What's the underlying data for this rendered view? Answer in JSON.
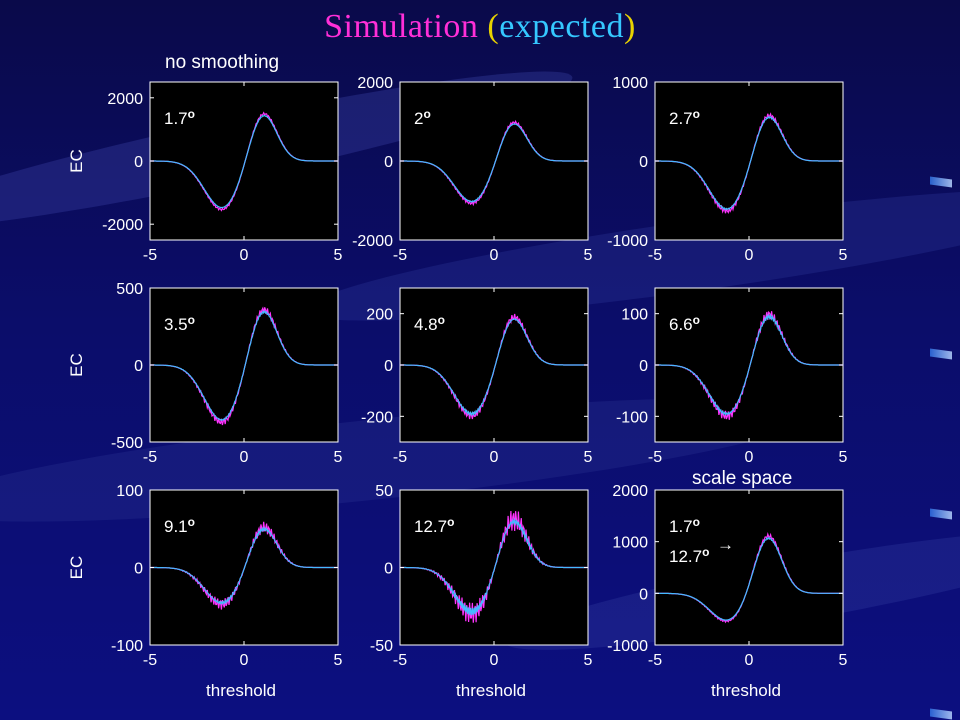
{
  "slide": {
    "title_part1": "Simulation",
    "title_open": "(",
    "title_part2": "expected",
    "title_close": ")",
    "note_top": "no smoothing",
    "note_scale": "scale space"
  },
  "colors": {
    "background": "#0b0d6a",
    "title_magenta": "#ff2fd8",
    "title_cyan": "#35c8ff",
    "title_yellow": "#e8d200",
    "plot_bg": "#000000",
    "axis": "#ffffff",
    "observed": "#ff33ff",
    "expected": "#44bbff"
  },
  "chart_data": [
    {
      "type": "line",
      "label": "1.7o",
      "ylabel": "EC",
      "xlabel": "",
      "xlim": [
        -5,
        5
      ],
      "ylim": [
        -2500,
        2500
      ],
      "xticks": [
        -5,
        0,
        5
      ],
      "yticks": [
        -2000,
        0,
        2000
      ],
      "peak": 1600,
      "trough": -1550,
      "noise": 0.02,
      "series": [
        {
          "name": "",
          "color": "#ff33ff"
        },
        {
          "name": "",
          "color": "#44bbff"
        }
      ]
    },
    {
      "type": "line",
      "label": "2o",
      "ylabel": "",
      "xlabel": "",
      "xlim": [
        -5,
        5
      ],
      "ylim": [
        -2000,
        2000
      ],
      "xticks": [
        -5,
        0,
        5
      ],
      "yticks": [
        -2000,
        0,
        2000
      ],
      "peak": 1050,
      "trough": -1080,
      "noise": 0.03,
      "series": [
        {
          "name": "",
          "color": "#ff33ff"
        },
        {
          "name": "",
          "color": "#44bbff"
        }
      ]
    },
    {
      "type": "line",
      "label": "2.7o",
      "ylabel": "",
      "xlabel": "",
      "xlim": [
        -5,
        5
      ],
      "ylim": [
        -1000,
        1000
      ],
      "xticks": [
        -5,
        0,
        5
      ],
      "yticks": [
        -1000,
        0,
        1000
      ],
      "peak": 620,
      "trough": -640,
      "noise": 0.04,
      "series": [
        {
          "name": "",
          "color": "#ff33ff"
        },
        {
          "name": "",
          "color": "#44bbff"
        }
      ]
    },
    {
      "type": "line",
      "label": "3.5o",
      "ylabel": "EC",
      "xlabel": "",
      "xlim": [
        -5,
        5
      ],
      "ylim": [
        -500,
        500
      ],
      "xticks": [
        -5,
        0,
        5
      ],
      "yticks": [
        -500,
        0,
        500
      ],
      "peak": 385,
      "trough": -375,
      "noise": 0.05,
      "series": [
        {
          "name": "",
          "color": "#ff33ff"
        },
        {
          "name": "",
          "color": "#44bbff"
        }
      ]
    },
    {
      "type": "line",
      "label": "4.8o",
      "ylabel": "",
      "xlabel": "",
      "xlim": [
        -5,
        5
      ],
      "ylim": [
        -300,
        300
      ],
      "xticks": [
        -5,
        0,
        5
      ],
      "yticks": [
        -200,
        0,
        200
      ],
      "peak": 200,
      "trough": -200,
      "noise": 0.06,
      "series": [
        {
          "name": "",
          "color": "#ff33ff"
        },
        {
          "name": "",
          "color": "#44bbff"
        }
      ]
    },
    {
      "type": "line",
      "label": "6.6o",
      "ylabel": "",
      "xlabel": "",
      "xlim": [
        -5,
        5
      ],
      "ylim": [
        -150,
        150
      ],
      "xticks": [
        -5,
        0,
        5
      ],
      "yticks": [
        -100,
        0,
        100
      ],
      "peak": 105,
      "trough": -100,
      "noise": 0.08,
      "series": [
        {
          "name": "",
          "color": "#ff33ff"
        },
        {
          "name": "",
          "color": "#44bbff"
        }
      ]
    },
    {
      "type": "line",
      "label": "9.1o",
      "ylabel": "EC",
      "xlabel": "threshold",
      "xlim": [
        -5,
        5
      ],
      "ylim": [
        -100,
        100
      ],
      "xticks": [
        -5,
        0,
        5
      ],
      "yticks": [
        -100,
        0,
        100
      ],
      "peak": 55,
      "trough": -48,
      "noise": 0.12,
      "series": [
        {
          "name": "",
          "color": "#ff33ff"
        },
        {
          "name": "",
          "color": "#44bbff"
        }
      ]
    },
    {
      "type": "line",
      "label": "12.7o",
      "ylabel": "",
      "xlabel": "threshold",
      "xlim": [
        -5,
        5
      ],
      "ylim": [
        -50,
        50
      ],
      "xticks": [
        -5,
        0,
        5
      ],
      "yticks": [
        -50,
        0,
        50
      ],
      "peak": 33,
      "trough": -30,
      "noise": 0.2,
      "series": [
        {
          "name": "",
          "color": "#ff33ff"
        },
        {
          "name": "",
          "color": "#44bbff"
        }
      ]
    },
    {
      "type": "line",
      "label": "1.7o",
      "label2": "12.7o",
      "arrow": "→",
      "ylabel": "",
      "xlabel": "threshold",
      "xlim": [
        -5,
        5
      ],
      "ylim": [
        -1000,
        2000
      ],
      "xticks": [
        -5,
        0,
        5
      ],
      "yticks": [
        -1000,
        0,
        1000,
        2000
      ],
      "peak": 1150,
      "trough": -550,
      "noise": 0.03,
      "series": [
        {
          "name": "",
          "color": "#ff33ff"
        },
        {
          "name": "",
          "color": "#44bbff"
        }
      ]
    }
  ]
}
